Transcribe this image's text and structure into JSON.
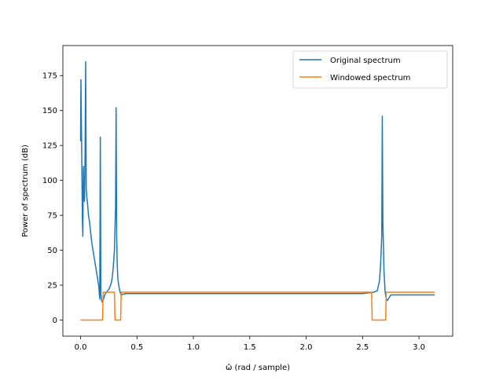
{
  "chart_data": {
    "type": "line",
    "title": "",
    "xlabel": "ω̂ (rad / sample)",
    "ylabel": "Power of spectrum (dB)",
    "xlim": [
      -0.157,
      3.299
    ],
    "ylim": [
      -11.5,
      196.5
    ],
    "xticks": [
      0.0,
      0.5,
      1.0,
      1.5,
      2.0,
      2.5,
      3.0
    ],
    "xtick_labels": [
      "0.0",
      "0.5",
      "1.0",
      "1.5",
      "2.0",
      "2.5",
      "3.0"
    ],
    "yticks": [
      0,
      25,
      50,
      75,
      100,
      125,
      150,
      175
    ],
    "ytick_labels": [
      "0",
      "25",
      "50",
      "75",
      "100",
      "125",
      "150",
      "175"
    ],
    "grid": false,
    "legend_position": "top-right",
    "series": [
      {
        "name": "Original spectrum",
        "color": "#1f77b4",
        "x": [
          0.0,
          0.003,
          0.006,
          0.01,
          0.013,
          0.016,
          0.02,
          0.025,
          0.03,
          0.035,
          0.04,
          0.045,
          0.05,
          0.055,
          0.06,
          0.07,
          0.08,
          0.09,
          0.1,
          0.11,
          0.12,
          0.13,
          0.14,
          0.15,
          0.16,
          0.17,
          0.175,
          0.18,
          0.185,
          0.19,
          0.2,
          0.21,
          0.22,
          0.23,
          0.24,
          0.25,
          0.26,
          0.27,
          0.28,
          0.29,
          0.3,
          0.31,
          0.315,
          0.32,
          0.325,
          0.33,
          0.34,
          0.35,
          0.36,
          0.4,
          0.5,
          1.0,
          1.5,
          2.0,
          2.5,
          2.6,
          2.63,
          2.65,
          2.66,
          2.67,
          2.675,
          2.68,
          2.69,
          2.7,
          2.71,
          2.72,
          2.75,
          3.0,
          3.14
        ],
        "y": [
          128,
          172,
          150,
          120,
          95,
          72,
          60,
          110,
          90,
          85,
          120,
          185,
          95,
          88,
          85,
          75,
          70,
          62,
          55,
          50,
          45,
          40,
          35,
          30,
          25,
          15,
          131,
          18,
          15,
          13,
          14,
          17,
          19,
          20,
          21,
          22,
          24,
          26,
          30,
          38,
          50,
          80,
          152,
          60,
          40,
          30,
          24,
          20,
          18,
          19,
          19,
          19,
          19,
          19,
          19,
          20,
          21,
          28,
          40,
          60,
          146,
          70,
          35,
          20,
          15,
          14,
          18,
          18,
          18
        ]
      },
      {
        "name": "Windowed spectrum",
        "color": "#ff7f0e",
        "x": [
          0.0,
          0.19,
          0.195,
          0.2,
          0.25,
          0.28,
          0.3,
          0.305,
          0.31,
          0.35,
          0.355,
          0.36,
          0.8,
          1.5,
          2.0,
          2.55,
          2.58,
          2.585,
          2.59,
          2.7,
          2.705,
          2.71,
          3.0,
          3.14
        ],
        "y": [
          0,
          0,
          0,
          20,
          20,
          20,
          20,
          0,
          0,
          0,
          0,
          20,
          20,
          20,
          20,
          20,
          20,
          0,
          0,
          0,
          0,
          20,
          20,
          20
        ]
      }
    ]
  }
}
